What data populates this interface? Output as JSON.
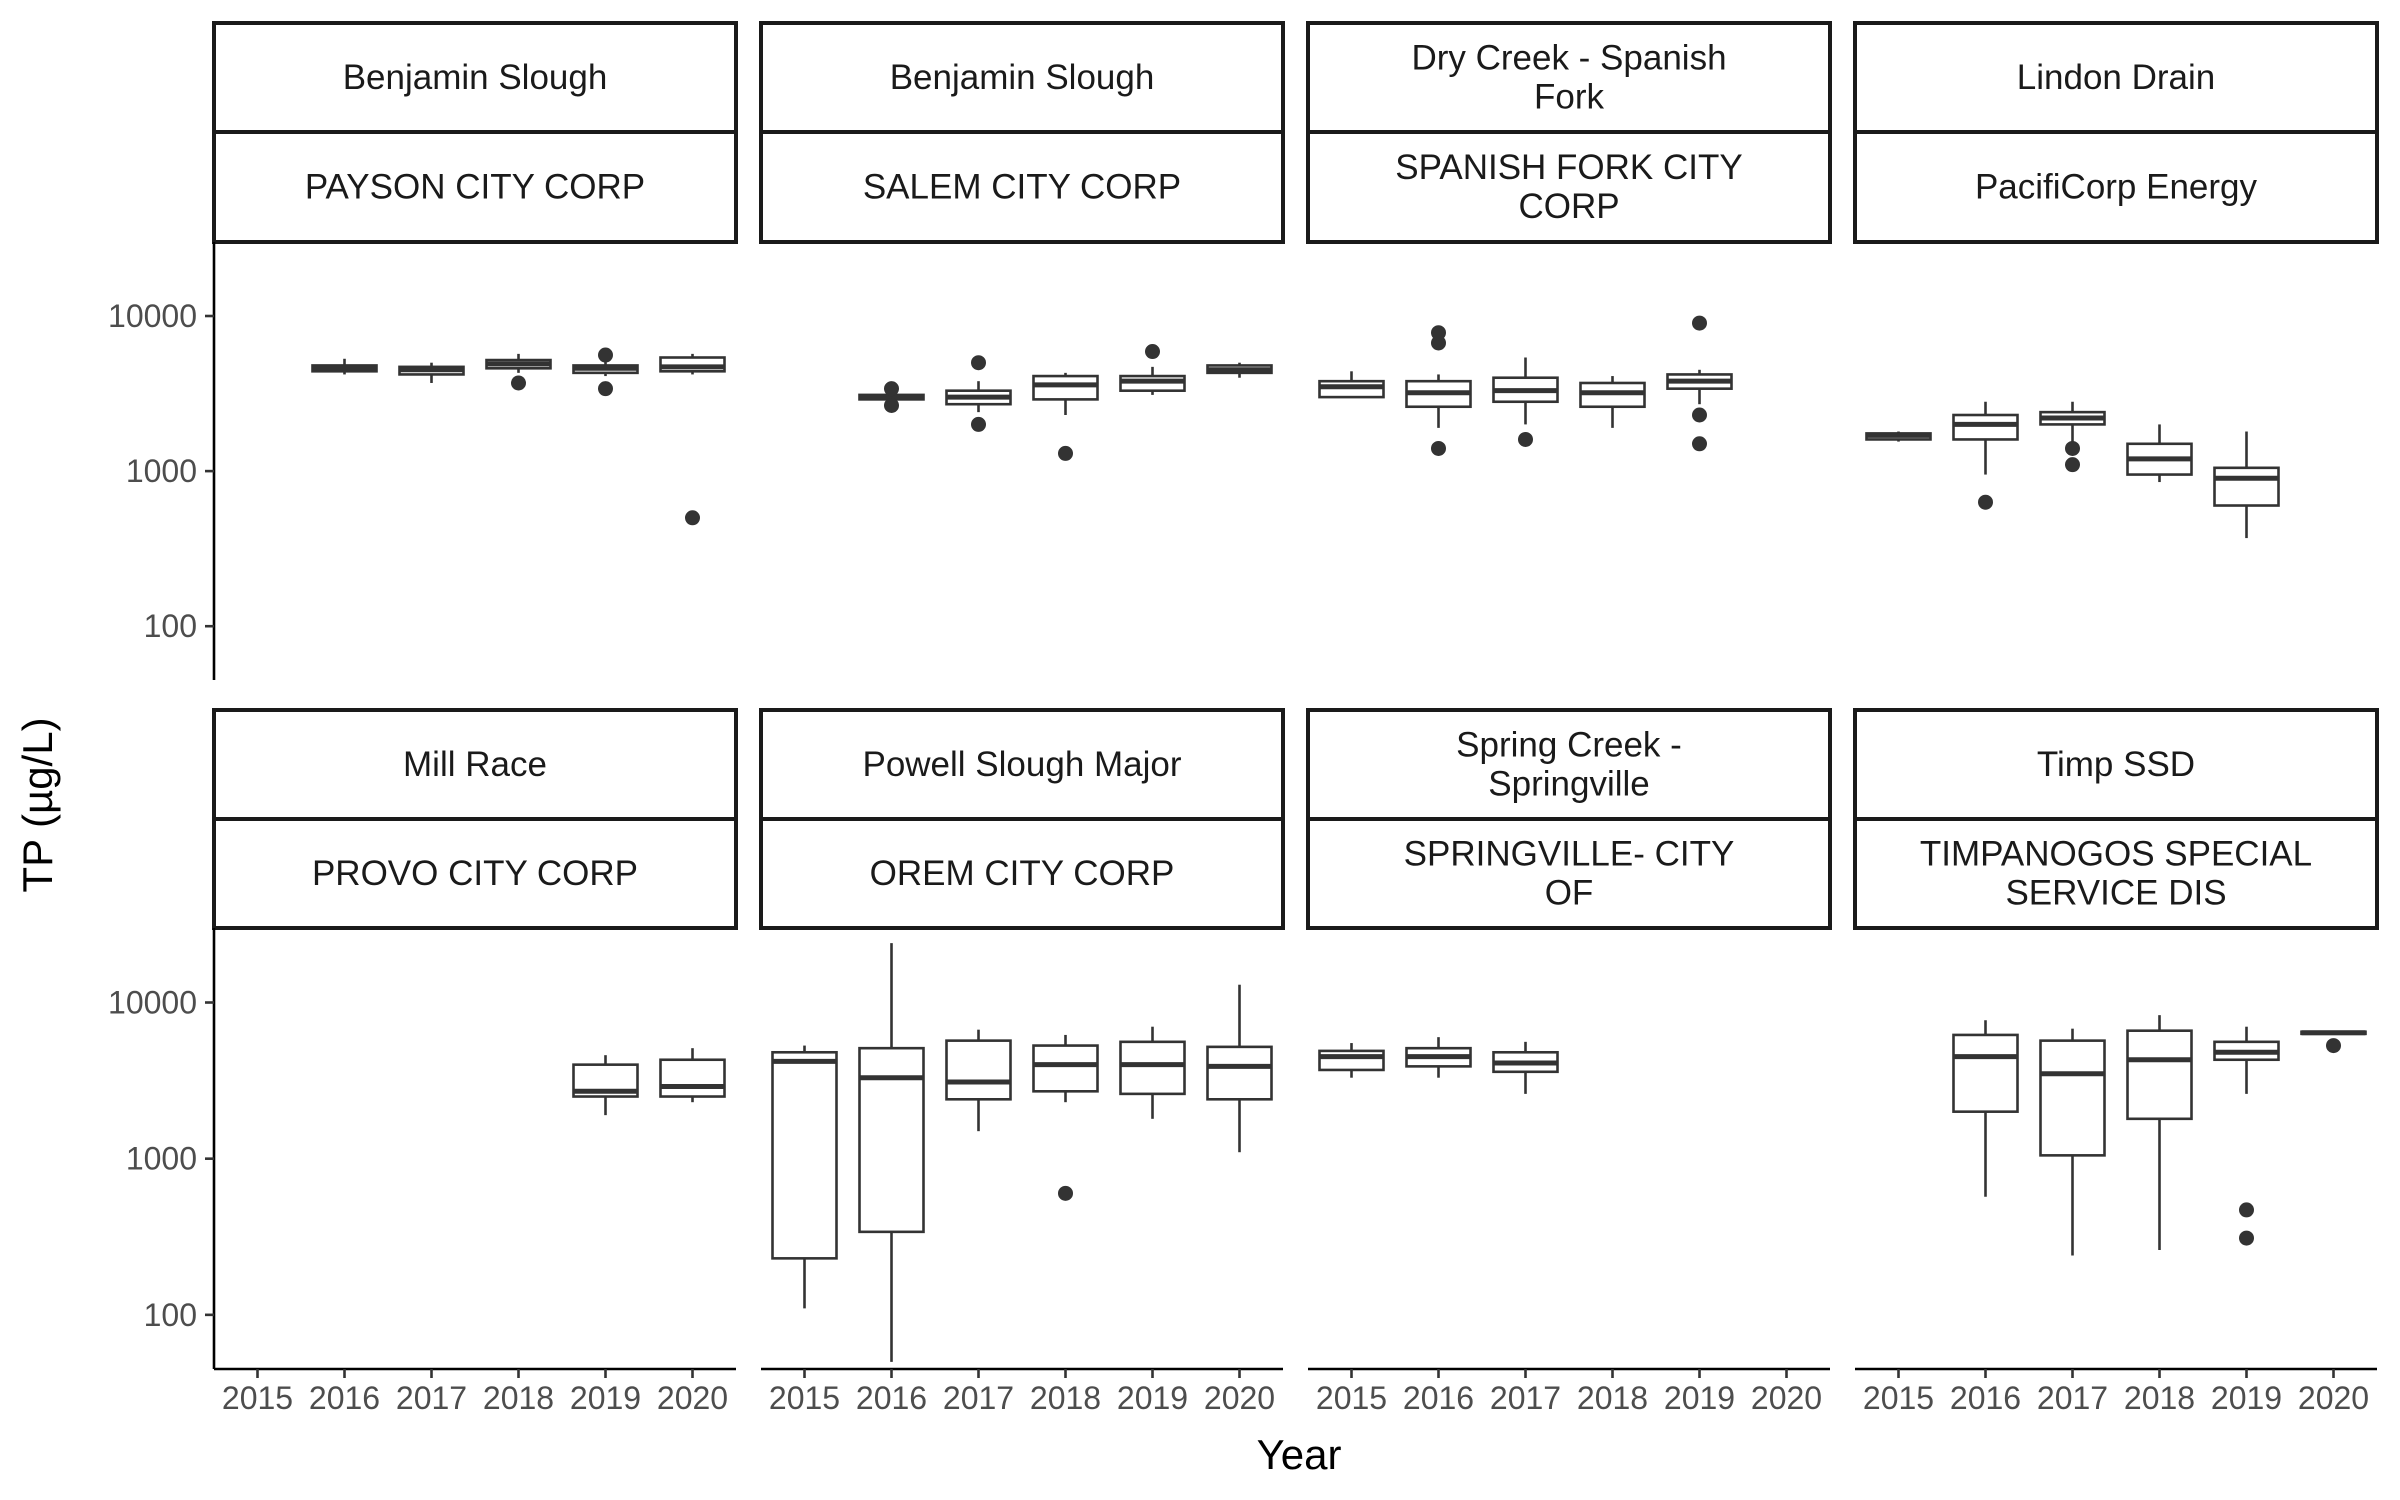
{
  "chart_data": {
    "type": "boxplot",
    "facet_layout": "2 rows x 4 columns, each panel has two stacked strip labels (waterbody, permittee)",
    "xlabel": "Year",
    "ylabel": "TP (µg/L)",
    "y_scale": "log10",
    "ylim": [
      45,
      30000
    ],
    "y_ticks": [
      100,
      1000,
      10000
    ],
    "y_tick_labels": [
      "100",
      "1000",
      "10000"
    ],
    "x_categories": [
      "2015",
      "2016",
      "2017",
      "2018",
      "2019",
      "2020"
    ],
    "grid": false,
    "panels": [
      {
        "strip1": "Benjamin Slough",
        "strip1_lines": [
          "Benjamin Slough"
        ],
        "strip2": "PAYSON CITY CORP",
        "strip2_lines": [
          "PAYSON CITY CORP"
        ],
        "boxes": [
          {
            "year": "2016",
            "whisker_low": 4200,
            "q1": 4400,
            "median": 4600,
            "q3": 4800,
            "whisker_high": 5300,
            "outliers": []
          },
          {
            "year": "2017",
            "whisker_low": 3700,
            "q1": 4200,
            "median": 4500,
            "q3": 4700,
            "whisker_high": 5000,
            "outliers": []
          },
          {
            "year": "2018",
            "whisker_low": 4300,
            "q1": 4600,
            "median": 4900,
            "q3": 5200,
            "whisker_high": 5700,
            "outliers": [
              3700
            ]
          },
          {
            "year": "2019",
            "whisker_low": 4100,
            "q1": 4300,
            "median": 4600,
            "q3": 4800,
            "whisker_high": 5200,
            "outliers": [
              3400,
              5600
            ]
          },
          {
            "year": "2020",
            "whisker_low": 4200,
            "q1": 4400,
            "median": 4700,
            "q3": 5400,
            "whisker_high": 5700,
            "outliers": [
              500
            ]
          }
        ]
      },
      {
        "strip1": "Benjamin Slough",
        "strip1_lines": [
          "Benjamin Slough"
        ],
        "strip2": "SALEM CITY CORP",
        "strip2_lines": [
          "SALEM CITY CORP"
        ],
        "boxes": [
          {
            "year": "2016",
            "whisker_low": 2800,
            "q1": 2900,
            "median": 3000,
            "q3": 3100,
            "whisker_high": 3300,
            "outliers": [
              2650,
              3400
            ]
          },
          {
            "year": "2017",
            "whisker_low": 2400,
            "q1": 2700,
            "median": 3000,
            "q3": 3300,
            "whisker_high": 3800,
            "outliers": [
              2000,
              5000
            ]
          },
          {
            "year": "2018",
            "whisker_low": 2300,
            "q1": 2900,
            "median": 3600,
            "q3": 4100,
            "whisker_high": 4300,
            "outliers": [
              1300
            ]
          },
          {
            "year": "2019",
            "whisker_low": 3100,
            "q1": 3300,
            "median": 3800,
            "q3": 4100,
            "whisker_high": 4700,
            "outliers": [
              5900
            ]
          },
          {
            "year": "2020",
            "whisker_low": 4000,
            "q1": 4300,
            "median": 4500,
            "q3": 4800,
            "whisker_high": 5000,
            "outliers": []
          }
        ]
      },
      {
        "strip1": "Dry Creek - Spanish Fork",
        "strip1_lines": [
          "Dry Creek - Spanish",
          "Fork"
        ],
        "strip2": "SPANISH FORK CITY CORP",
        "strip2_lines": [
          "SPANISH FORK CITY",
          "CORP"
        ],
        "boxes": [
          {
            "year": "2015",
            "whisker_low": 3000,
            "q1": 3000,
            "median": 3500,
            "q3": 3800,
            "whisker_high": 4400,
            "outliers": []
          },
          {
            "year": "2016",
            "whisker_low": 1900,
            "q1": 2600,
            "median": 3200,
            "q3": 3800,
            "whisker_high": 4200,
            "outliers": [
              1400,
              6700,
              7800
            ]
          },
          {
            "year": "2017",
            "whisker_low": 2000,
            "q1": 2800,
            "median": 3300,
            "q3": 4000,
            "whisker_high": 5400,
            "outliers": [
              1600
            ]
          },
          {
            "year": "2018",
            "whisker_low": 1900,
            "q1": 2600,
            "median": 3200,
            "q3": 3700,
            "whisker_high": 4100,
            "outliers": []
          },
          {
            "year": "2019",
            "whisker_low": 2700,
            "q1": 3400,
            "median": 3800,
            "q3": 4200,
            "whisker_high": 4500,
            "outliers": [
              1500,
              2300,
              9000
            ]
          }
        ]
      },
      {
        "strip1": "Lindon Drain",
        "strip1_lines": [
          "Lindon Drain"
        ],
        "strip2": "PacifiCorp Energy",
        "strip2_lines": [
          "PacifiCorp Energy"
        ],
        "boxes": [
          {
            "year": "2015",
            "whisker_low": 1550,
            "q1": 1600,
            "median": 1700,
            "q3": 1750,
            "whisker_high": 1800,
            "outliers": []
          },
          {
            "year": "2016",
            "whisker_low": 950,
            "q1": 1600,
            "median": 2000,
            "q3": 2300,
            "whisker_high": 2800,
            "outliers": [
              630
            ]
          },
          {
            "year": "2017",
            "whisker_low": 1500,
            "q1": 2000,
            "median": 2200,
            "q3": 2400,
            "whisker_high": 2800,
            "outliers": [
              1100,
              1400
            ]
          },
          {
            "year": "2018",
            "whisker_low": 850,
            "q1": 950,
            "median": 1200,
            "q3": 1500,
            "whisker_high": 2000,
            "outliers": []
          },
          {
            "year": "2019",
            "whisker_low": 370,
            "q1": 600,
            "median": 900,
            "q3": 1050,
            "whisker_high": 1800,
            "outliers": []
          }
        ]
      },
      {
        "strip1": "Mill Race",
        "strip1_lines": [
          "Mill Race"
        ],
        "strip2": "PROVO CITY CORP",
        "strip2_lines": [
          "PROVO CITY CORP"
        ],
        "boxes": [
          {
            "year": "2019",
            "whisker_low": 1900,
            "q1": 2500,
            "median": 2700,
            "q3": 4000,
            "whisker_high": 4600,
            "outliers": []
          },
          {
            "year": "2020",
            "whisker_low": 2300,
            "q1": 2500,
            "median": 2900,
            "q3": 4300,
            "whisker_high": 5100,
            "outliers": []
          }
        ]
      },
      {
        "strip1": "Powell Slough Major",
        "strip1_lines": [
          "Powell Slough Major"
        ],
        "strip2": "OREM CITY CORP",
        "strip2_lines": [
          "OREM CITY CORP"
        ],
        "boxes": [
          {
            "year": "2015",
            "whisker_low": 110,
            "q1": 230,
            "median": 4200,
            "q3": 4800,
            "whisker_high": 5300,
            "outliers": []
          },
          {
            "year": "2016",
            "whisker_low": 50,
            "q1": 340,
            "median": 3300,
            "q3": 5100,
            "whisker_high": 24000,
            "outliers": []
          },
          {
            "year": "2017",
            "whisker_low": 1500,
            "q1": 2400,
            "median": 3100,
            "q3": 5700,
            "whisker_high": 6700,
            "outliers": []
          },
          {
            "year": "2018",
            "whisker_low": 2300,
            "q1": 2700,
            "median": 4000,
            "q3": 5300,
            "whisker_high": 6200,
            "outliers": [
              600
            ]
          },
          {
            "year": "2019",
            "whisker_low": 1800,
            "q1": 2600,
            "median": 4000,
            "q3": 5600,
            "whisker_high": 7000,
            "outliers": []
          },
          {
            "year": "2020",
            "whisker_low": 1100,
            "q1": 2400,
            "median": 3900,
            "q3": 5200,
            "whisker_high": 13000,
            "outliers": []
          }
        ]
      },
      {
        "strip1": "Spring Creek - Springville",
        "strip1_lines": [
          "Spring Creek -",
          "Springville"
        ],
        "strip2": "SPRINGVILLE- CITY OF",
        "strip2_lines": [
          "SPRINGVILLE- CITY",
          "OF"
        ],
        "boxes": [
          {
            "year": "2015",
            "whisker_low": 3300,
            "q1": 3700,
            "median": 4500,
            "q3": 4900,
            "whisker_high": 5500,
            "outliers": []
          },
          {
            "year": "2016",
            "whisker_low": 3300,
            "q1": 3900,
            "median": 4500,
            "q3": 5100,
            "whisker_high": 6000,
            "outliers": []
          },
          {
            "year": "2017",
            "whisker_low": 2600,
            "q1": 3600,
            "median": 4100,
            "q3": 4800,
            "whisker_high": 5600,
            "outliers": []
          }
        ]
      },
      {
        "strip1": "Timp SSD",
        "strip1_lines": [
          "Timp SSD"
        ],
        "strip2": "TIMPANOGOS SPECIAL SERVICE DIS",
        "strip2_lines": [
          "TIMPANOGOS SPECIAL",
          "SERVICE DIS"
        ],
        "boxes": [
          {
            "year": "2016",
            "whisker_low": 570,
            "q1": 2000,
            "median": 4500,
            "q3": 6200,
            "whisker_high": 7700,
            "outliers": []
          },
          {
            "year": "2017",
            "whisker_low": 240,
            "q1": 1050,
            "median": 3500,
            "q3": 5700,
            "whisker_high": 6800,
            "outliers": []
          },
          {
            "year": "2018",
            "whisker_low": 260,
            "q1": 1800,
            "median": 4300,
            "q3": 6600,
            "whisker_high": 8300,
            "outliers": []
          },
          {
            "year": "2019",
            "whisker_low": 2600,
            "q1": 4300,
            "median": 4800,
            "q3": 5600,
            "whisker_high": 7000,
            "outliers": [
              310,
              470
            ]
          },
          {
            "year": "2020",
            "whisker_low": 6200,
            "q1": 6300,
            "median": 6400,
            "q3": 6500,
            "whisker_high": 6600,
            "outliers": [
              5300
            ]
          }
        ]
      }
    ]
  }
}
